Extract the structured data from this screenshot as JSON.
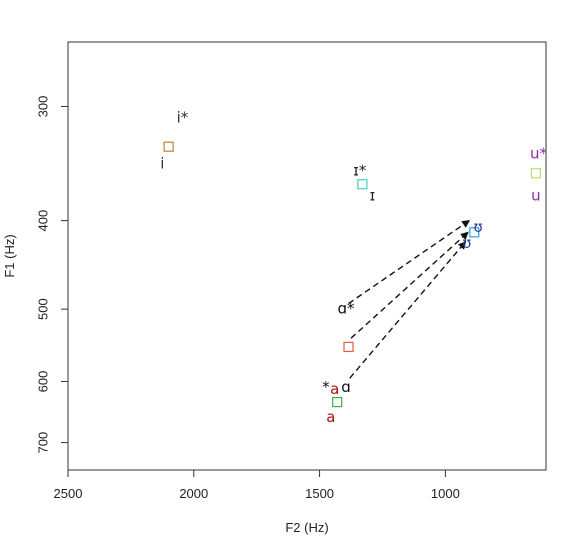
{
  "chart_data": {
    "type": "scatter",
    "title": "",
    "xlabel": "F2 (Hz)",
    "ylabel": "F1 (Hz)",
    "x_reversed": true,
    "y_reversed": true,
    "y_scale": "log",
    "xlim": [
      2500,
      600
    ],
    "ylim": [
      255,
      750
    ],
    "x_ticks": [
      2500,
      2000,
      1500,
      1000
    ],
    "y_ticks": [
      300,
      400,
      500,
      600,
      700
    ],
    "grid": false,
    "legend": "none",
    "squares": [
      {
        "vowel": "i",
        "x": 2100,
        "y": 332,
        "color": "#c08030"
      },
      {
        "vowel": "ɪ",
        "x": 1330,
        "y": 365,
        "color": "#40d0c0"
      },
      {
        "vowel": "u",
        "x": 640,
        "y": 355,
        "color": "#b8e070"
      },
      {
        "vowel": "ʊ",
        "x": 885,
        "y": 412,
        "color": "#30a0e0"
      },
      {
        "vowel": "ɑ",
        "x": 1385,
        "y": 550,
        "color": "#e06040"
      },
      {
        "vowel": "a",
        "x": 1430,
        "y": 632,
        "color": "#40b040"
      }
    ],
    "labels": [
      {
        "text": "i*",
        "x": 2045,
        "y": 309,
        "color": "#333333"
      },
      {
        "text": "i",
        "x": 2125,
        "y": 347,
        "color": "#333333"
      },
      {
        "text": "ɪ*",
        "x": 1340,
        "y": 353,
        "color": "#222222"
      },
      {
        "text": "ɪ",
        "x": 1290,
        "y": 376,
        "color": "#222222"
      },
      {
        "text": "u*",
        "x": 630,
        "y": 338,
        "color": "#8a2ea0"
      },
      {
        "text": "u",
        "x": 640,
        "y": 376,
        "color": "#8a2ea0"
      },
      {
        "text": "ʊ",
        "x": 870,
        "y": 407,
        "color": "#2a3e9a"
      },
      {
        "text": "ʊ",
        "x": 915,
        "y": 424,
        "color": "#2a3e9a"
      },
      {
        "text": "ɑ*",
        "x": 1395,
        "y": 500,
        "color": "#111111"
      },
      {
        "text": "*",
        "x": 1475,
        "y": 609,
        "color": "#111111"
      },
      {
        "text": "a",
        "x": 1440,
        "y": 612,
        "color": "#aa1010"
      },
      {
        "text": "ɑ",
        "x": 1395,
        "y": 609,
        "color": "#111111"
      },
      {
        "text": "a",
        "x": 1455,
        "y": 657,
        "color": "#aa1010"
      }
    ],
    "arrows": [
      {
        "from": [
          1385,
          493
        ],
        "to": [
          905,
          400
        ]
      },
      {
        "from": [
          1375,
          538
        ],
        "to": [
          910,
          412
        ]
      },
      {
        "from": [
          1380,
          595
        ],
        "to": [
          920,
          422
        ]
      }
    ]
  }
}
